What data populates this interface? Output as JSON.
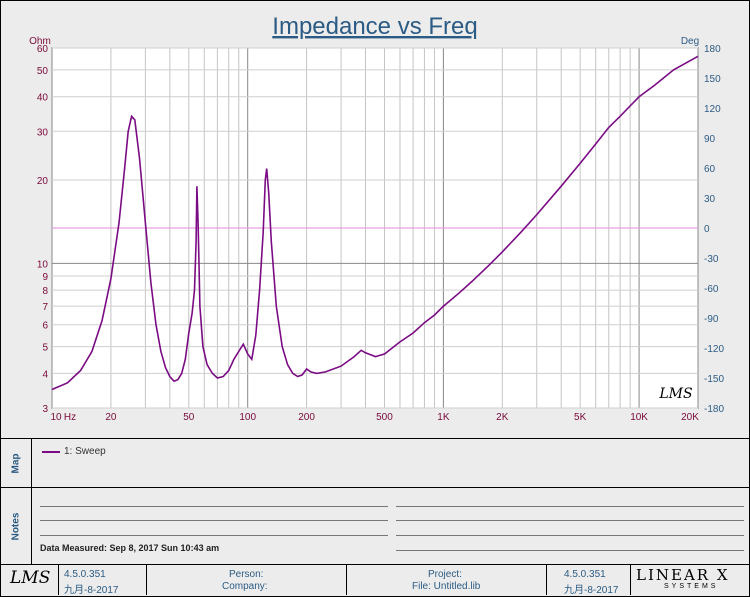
{
  "chart_data": {
    "type": "line",
    "title": "Impedance vs Freq",
    "left_unit": "Ohm",
    "right_unit": "Deg",
    "x_scale": "log",
    "xlim": [
      10,
      20000
    ],
    "y_scale": "log",
    "ylim": [
      3,
      60
    ],
    "y2lim": [
      -180,
      180
    ],
    "grid": true,
    "x_ticks": [
      "10",
      "20",
      "50",
      "100",
      "200",
      "500",
      "1K",
      "2K",
      "5K",
      "10K",
      "20K"
    ],
    "x_unit_label": "Hz",
    "y_ticks": [
      "3",
      "4",
      "5",
      "6",
      "7",
      "8",
      "9",
      "10",
      "20",
      "30",
      "40",
      "50",
      "60"
    ],
    "y2_ticks": [
      "180",
      "150",
      "120",
      "90",
      "60",
      "30",
      "0",
      "-30",
      "-60",
      "-90",
      "-120",
      "-150",
      "-180"
    ],
    "series": [
      {
        "name": "1: Sweep",
        "color": "#7b0b84",
        "points": [
          [
            10,
            3.5
          ],
          [
            12,
            3.7
          ],
          [
            14,
            4.1
          ],
          [
            16,
            4.8
          ],
          [
            18,
            6.2
          ],
          [
            20,
            8.8
          ],
          [
            22,
            14
          ],
          [
            23.5,
            22
          ],
          [
            24.5,
            30
          ],
          [
            25.5,
            34
          ],
          [
            26.5,
            33
          ],
          [
            28,
            24
          ],
          [
            30,
            14
          ],
          [
            32,
            8.5
          ],
          [
            34,
            6
          ],
          [
            36,
            4.8
          ],
          [
            38,
            4.2
          ],
          [
            40,
            3.9
          ],
          [
            42,
            3.75
          ],
          [
            44,
            3.8
          ],
          [
            46,
            4
          ],
          [
            48,
            4.5
          ],
          [
            50,
            5.6
          ],
          [
            52,
            6.6
          ],
          [
            53.5,
            8
          ],
          [
            54.5,
            12
          ],
          [
            55,
            19
          ],
          [
            55.8,
            14
          ],
          [
            57,
            7
          ],
          [
            59,
            5
          ],
          [
            62,
            4.3
          ],
          [
            66,
            4
          ],
          [
            70,
            3.85
          ],
          [
            75,
            3.9
          ],
          [
            80,
            4.1
          ],
          [
            85,
            4.5
          ],
          [
            90,
            4.8
          ],
          [
            95,
            5.1
          ],
          [
            100,
            4.7
          ],
          [
            105,
            4.5
          ],
          [
            110,
            5.5
          ],
          [
            115,
            8
          ],
          [
            120,
            13
          ],
          [
            123,
            20
          ],
          [
            125,
            22
          ],
          [
            128,
            18
          ],
          [
            132,
            12
          ],
          [
            140,
            7
          ],
          [
            150,
            5
          ],
          [
            160,
            4.3
          ],
          [
            170,
            4
          ],
          [
            180,
            3.9
          ],
          [
            190,
            3.95
          ],
          [
            200,
            4.15
          ],
          [
            210,
            4.05
          ],
          [
            225,
            4
          ],
          [
            250,
            4.05
          ],
          [
            300,
            4.25
          ],
          [
            350,
            4.6
          ],
          [
            380,
            4.85
          ],
          [
            400,
            4.75
          ],
          [
            450,
            4.6
          ],
          [
            500,
            4.7
          ],
          [
            600,
            5.2
          ],
          [
            700,
            5.6
          ],
          [
            800,
            6.1
          ],
          [
            900,
            6.5
          ],
          [
            1000,
            7
          ],
          [
            1200,
            7.8
          ],
          [
            1400,
            8.6
          ],
          [
            1700,
            9.8
          ],
          [
            2000,
            11
          ],
          [
            2500,
            13
          ],
          [
            3000,
            15
          ],
          [
            4000,
            19
          ],
          [
            5000,
            23
          ],
          [
            6000,
            27
          ],
          [
            7000,
            31
          ],
          [
            8000,
            34
          ],
          [
            10000,
            40
          ],
          [
            12000,
            44
          ],
          [
            15000,
            50
          ],
          [
            20000,
            56
          ]
        ]
      }
    ],
    "zero_phase_line": 0,
    "watermark": "LMS"
  },
  "panels": {
    "map_label": "Map",
    "legend_entry": "1: Sweep",
    "notes_label": "Notes",
    "date_measured": "Data Measured: Sep 8, 2017 Sun 10:43 am"
  },
  "footer": {
    "logo_left": "LMS",
    "version_left": "4.5.0.351",
    "date_left": "九月-8-2017",
    "person_label": "Person:",
    "company_label": "Company:",
    "project_label": "Project:",
    "file_label": "File: Untitled.lib",
    "version_right": "4.5.0.351",
    "date_right": "九月-8-2017",
    "brand_top": "LINEAR X",
    "brand_bottom": "SYSTEMS"
  },
  "colors": {
    "curve": "#7b0b84",
    "zero_line": "#e8a0e0",
    "axis_text_left": "#7a0a3a",
    "axis_text_right": "#2d5c86",
    "title": "#2b5b84"
  }
}
